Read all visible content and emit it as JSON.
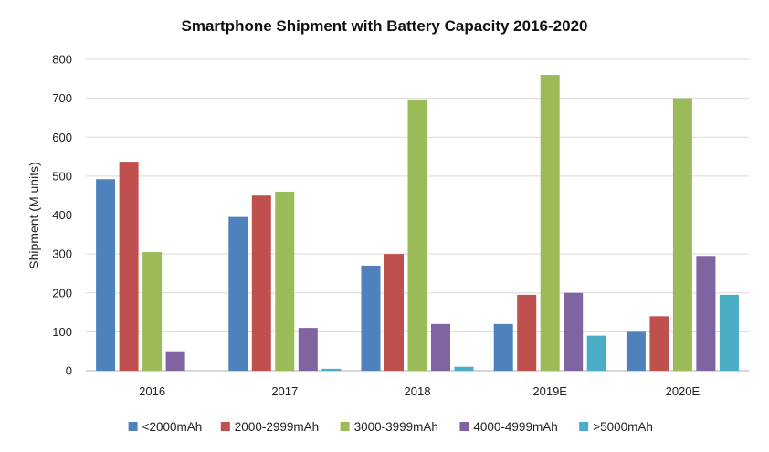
{
  "chart_data": {
    "type": "bar",
    "title": "Smartphone Shipment with Battery Capacity 2016-2020",
    "xlabel": "",
    "ylabel": "Shipment (M units)",
    "categories": [
      "2016",
      "2017",
      "2018",
      "2019E",
      "2020E"
    ],
    "ylim": [
      0,
      800
    ],
    "yticks": [
      0,
      100,
      200,
      300,
      400,
      500,
      600,
      700,
      800
    ],
    "grid": true,
    "legend_position": "bottom",
    "series": [
      {
        "name": "<2000mAh",
        "color": "#4F81BD",
        "values": [
          492,
          395,
          270,
          120,
          100
        ]
      },
      {
        "name": "2000-2999mAh",
        "color": "#C0504D",
        "values": [
          537,
          450,
          300,
          195,
          140
        ]
      },
      {
        "name": "3000-3999mAh",
        "color": "#9BBB59",
        "values": [
          305,
          460,
          697,
          760,
          700
        ]
      },
      {
        "name": "4000-4999mAh",
        "color": "#8064A2",
        "values": [
          50,
          110,
          120,
          200,
          295
        ]
      },
      {
        "name": ">5000mAh",
        "color": "#4BACC6",
        "values": [
          0,
          5,
          10,
          90,
          195
        ]
      }
    ]
  }
}
